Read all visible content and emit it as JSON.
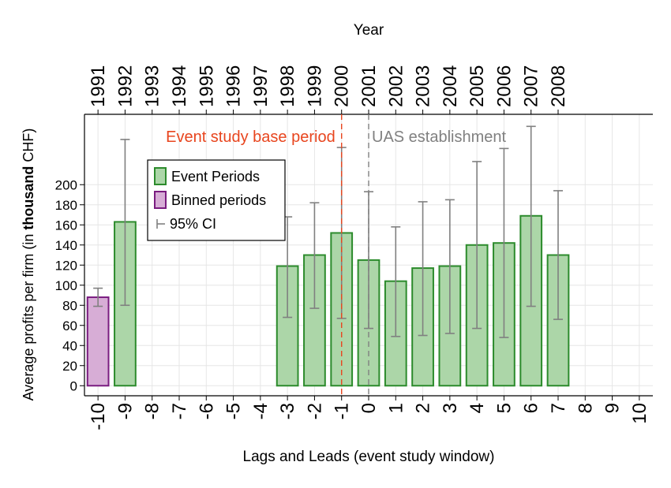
{
  "chart_data": {
    "type": "bar",
    "xlabel": "Lags and Leads (event study window)",
    "ylabel_parts": [
      "Average profits per firm (in ",
      "thousand",
      " CHF)"
    ],
    "top_axis_title": "Year",
    "x_ticks": [
      -10,
      -9,
      -8,
      -7,
      -6,
      -5,
      -4,
      -3,
      -2,
      -1,
      0,
      1,
      2,
      3,
      4,
      5,
      6,
      7,
      8,
      9,
      10
    ],
    "top_ticks": [
      "1991",
      "1992",
      "1993",
      "1994",
      "1995",
      "1996",
      "1997",
      "1998",
      "1999",
      "2000",
      "2001",
      "2002",
      "2003",
      "2004",
      "2005",
      "2006",
      "2007",
      "2008"
    ],
    "y_ticks": [
      0,
      20,
      40,
      60,
      80,
      100,
      120,
      140,
      160,
      180,
      200
    ],
    "ylim": [
      -10,
      270
    ],
    "xlim": [
      -10.5,
      10.5
    ],
    "series": [
      {
        "name": "Event Periods",
        "color": "#acd6a8",
        "edge": "#2c8b2c",
        "points": [
          {
            "x": -9,
            "value": 163,
            "ci_low": 80,
            "ci_high": 245
          },
          {
            "x": -3,
            "value": 119,
            "ci_low": 68,
            "ci_high": 168
          },
          {
            "x": -2,
            "value": 130,
            "ci_low": 77,
            "ci_high": 182
          },
          {
            "x": -1,
            "value": 152,
            "ci_low": 67,
            "ci_high": 237
          },
          {
            "x": 0,
            "value": 125,
            "ci_low": 57,
            "ci_high": 193
          },
          {
            "x": 1,
            "value": 104,
            "ci_low": 49,
            "ci_high": 158
          },
          {
            "x": 2,
            "value": 117,
            "ci_low": 50,
            "ci_high": 183
          },
          {
            "x": 3,
            "value": 119,
            "ci_low": 52,
            "ci_high": 185
          },
          {
            "x": 4,
            "value": 140,
            "ci_low": 57,
            "ci_high": 223
          },
          {
            "x": 5,
            "value": 142,
            "ci_low": 48,
            "ci_high": 236
          },
          {
            "x": 6,
            "value": 169,
            "ci_low": 79,
            "ci_high": 258
          },
          {
            "x": 7,
            "value": 130,
            "ci_low": 66,
            "ci_high": 194
          }
        ]
      },
      {
        "name": "Binned periods",
        "color": "#d7add6",
        "edge": "#7a1c80",
        "points": [
          {
            "x": -10,
            "value": 88,
            "ci_low": 79,
            "ci_high": 97
          }
        ]
      }
    ],
    "ci_label": "95% CI",
    "ci_color": "#808080",
    "annotations": [
      {
        "x": -1,
        "text": "Event study base period",
        "color": "#e8451e",
        "side": "left"
      },
      {
        "x": 0,
        "text": "UAS establishment",
        "color": "#808080",
        "side": "right"
      }
    ],
    "grid": true,
    "legend_position": "top-left"
  }
}
